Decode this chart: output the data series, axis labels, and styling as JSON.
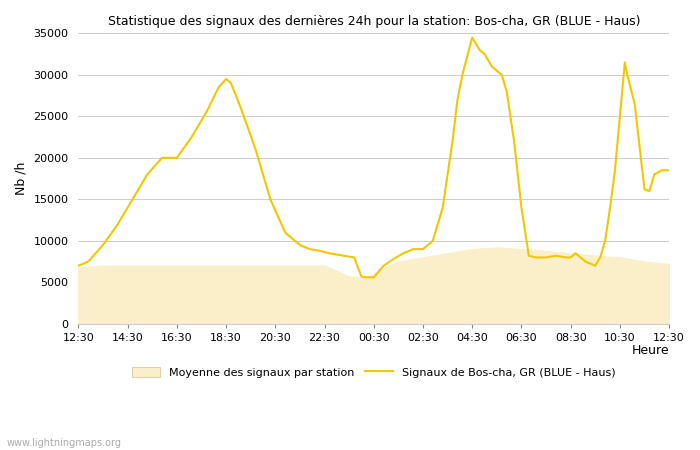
{
  "title": "Statistique des signaux des dernières 24h pour la station: Bos-cha, GR (BLUE - Haus)",
  "xlabel": "Heure",
  "ylabel": "Nb /h",
  "ylim": [
    0,
    35000
  ],
  "yticks": [
    0,
    5000,
    10000,
    15000,
    20000,
    25000,
    30000,
    35000
  ],
  "xtick_labels": [
    "12:30",
    "14:30",
    "16:30",
    "18:30",
    "20:30",
    "22:30",
    "00:30",
    "02:30",
    "04:30",
    "06:30",
    "08:30",
    "10:30",
    "12:30"
  ],
  "background_color": "#ffffff",
  "grid_color": "#cccccc",
  "line_color": "#f0c800",
  "fill_color": "#faefc8",
  "fill_edge_color": "#f0c800",
  "watermark": "www.lightningmaps.org",
  "legend_avg": "Moyenne des signaux par station",
  "legend_station": "Signaux de Bos-cha, GR (BLUE - Haus)",
  "station_x": [
    0,
    0.2,
    0.5,
    0.8,
    1.1,
    1.4,
    1.7,
    2.0,
    2.3,
    2.6,
    2.85,
    3.0,
    3.1,
    3.3,
    3.6,
    3.9,
    4.2,
    4.5,
    4.7,
    4.9,
    5.1,
    5.4,
    5.6,
    5.75,
    5.85,
    6.0,
    6.2,
    6.4,
    6.6,
    6.8,
    7.0,
    7.2,
    7.4,
    7.5,
    7.6,
    7.7,
    7.8,
    8.0,
    8.15,
    8.25,
    8.4,
    8.5,
    8.6,
    8.7,
    8.85,
    9.0,
    9.15,
    9.3,
    9.5,
    9.7,
    9.9,
    10.0,
    10.1,
    10.2,
    10.3,
    10.5,
    10.6,
    10.7,
    10.8,
    10.9,
    11.0,
    11.1,
    11.15,
    11.3,
    11.5,
    11.6,
    11.7,
    11.85,
    12.0
  ],
  "station_y": [
    7000,
    7500,
    9500,
    12000,
    15000,
    18000,
    20000,
    20000,
    22500,
    25500,
    28500,
    29500,
    29000,
    26000,
    21000,
    15000,
    11000,
    9500,
    9000,
    8800,
    8500,
    8200,
    8000,
    5700,
    5600,
    5600,
    7000,
    7800,
    8500,
    9000,
    9000,
    10000,
    14000,
    18000,
    22000,
    27000,
    30000,
    34500,
    33000,
    32500,
    31000,
    30500,
    30000,
    28000,
    22000,
    14000,
    8200,
    8000,
    8000,
    8200,
    8000,
    8000,
    8500,
    8000,
    7500,
    7000,
    8000,
    10000,
    14000,
    18500,
    25000,
    31500,
    30000,
    26500,
    16200,
    16000,
    18000,
    18500,
    18500
  ],
  "avg_x": [
    0,
    0.5,
    1.0,
    1.5,
    2.0,
    2.5,
    3.0,
    3.5,
    4.0,
    4.5,
    5.0,
    5.5,
    5.7,
    5.85,
    6.0,
    6.3,
    6.5,
    7.0,
    7.5,
    8.0,
    8.5,
    9.0,
    9.5,
    10.0,
    10.5,
    11.0,
    11.5,
    12.0
  ],
  "avg_y": [
    6800,
    7000,
    7000,
    7000,
    7000,
    7000,
    7000,
    7000,
    7000,
    7000,
    7000,
    5700,
    5600,
    5600,
    6000,
    7000,
    7500,
    8000,
    8500,
    9000,
    9200,
    9000,
    8800,
    8500,
    8200,
    8000,
    7500,
    7200
  ]
}
